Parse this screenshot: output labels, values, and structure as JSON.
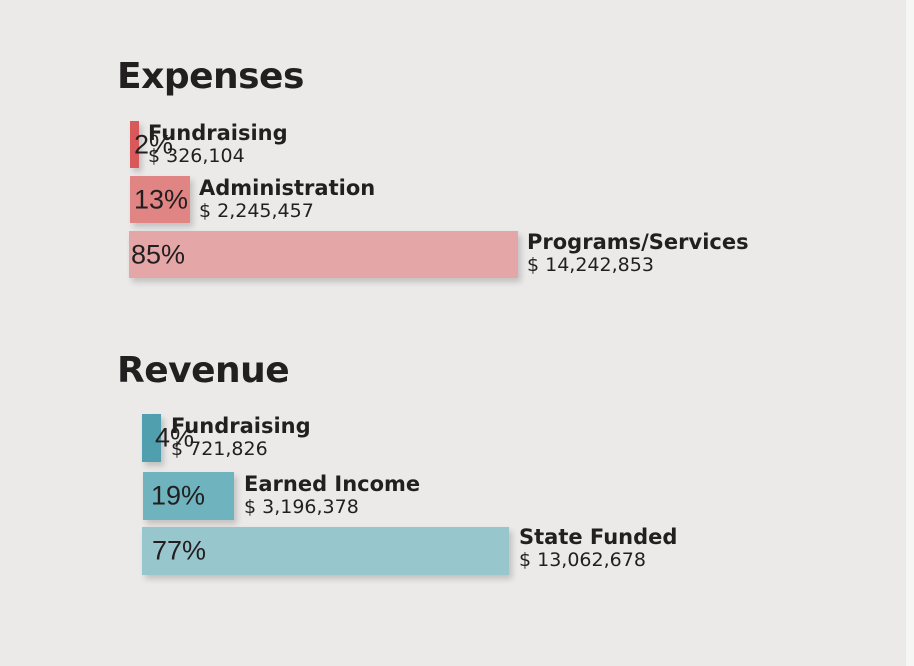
{
  "chart_data": [
    {
      "type": "bar",
      "orientation": "horizontal",
      "title": "Expenses",
      "unit": "percent",
      "categories": [
        "Fundraising",
        "Administration",
        "Programs/Services"
      ],
      "values": [
        2,
        13,
        85
      ],
      "value_labels": [
        "2%",
        "13%",
        "85%"
      ],
      "amounts": [
        "$ 326,104",
        "$ 2,245,457",
        "$ 14,242,853"
      ],
      "colors": [
        "#d9595a",
        "#e08583",
        "#e5a6a8"
      ]
    },
    {
      "type": "bar",
      "orientation": "horizontal",
      "title": "Revenue",
      "unit": "percent",
      "categories": [
        "Fundraising",
        "Earned Income",
        "State Funded"
      ],
      "values": [
        4,
        19,
        77
      ],
      "value_labels": [
        "4%",
        "19%",
        "77%"
      ],
      "amounts": [
        "$ 721,826",
        "$ 3,196,378",
        "$ 13,062,678"
      ],
      "colors": [
        "#4f9fae",
        "#6eb3bd",
        "#98c6cd"
      ]
    }
  ]
}
